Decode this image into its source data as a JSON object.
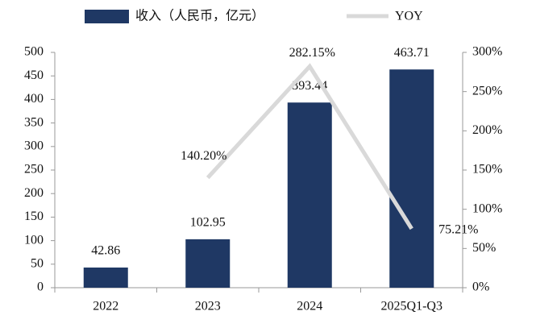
{
  "chart_data": {
    "type": "bar",
    "categories": [
      "2022",
      "2023",
      "2024",
      "2025Q1-Q3"
    ],
    "series": [
      {
        "name": "收入（人民币，亿元）",
        "type": "bar",
        "color": "#1f3864",
        "values": [
          42.86,
          102.95,
          393.44,
          463.71
        ]
      },
      {
        "name": "YOY",
        "type": "line",
        "axis": "y2",
        "color": "#d9d9d9",
        "values": [
          null,
          140.2,
          282.15,
          75.21
        ],
        "value_labels": [
          null,
          "140.20%",
          "282.15%",
          "75.21%"
        ]
      }
    ],
    "ylim": [
      0,
      500
    ],
    "yticks": [
      0,
      50,
      100,
      150,
      200,
      250,
      300,
      350,
      400,
      450,
      500
    ],
    "y2lim": [
      0,
      300
    ],
    "y2ticks": [
      {
        "value": 0,
        "label": "0%"
      },
      {
        "value": 50,
        "label": "50%"
      },
      {
        "value": 100,
        "label": "100%"
      },
      {
        "value": 150,
        "label": "150%"
      },
      {
        "value": 200,
        "label": "200%"
      },
      {
        "value": 250,
        "label": "250%"
      },
      {
        "value": 300,
        "label": "300%"
      }
    ],
    "legend": "top"
  }
}
